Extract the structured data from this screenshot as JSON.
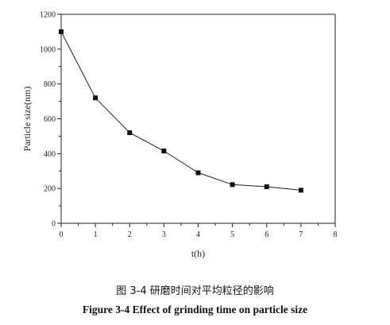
{
  "chart_data": {
    "type": "line",
    "x": [
      0,
      1,
      2,
      3,
      4,
      5,
      6,
      7
    ],
    "series": [
      {
        "values": [
          1100,
          720,
          520,
          415,
          290,
          222,
          210,
          190
        ]
      }
    ],
    "xlabel": "t(h)",
    "ylabel": "Particle size(nm)",
    "xlim": [
      0,
      8
    ],
    "ylim": [
      0,
      1200
    ],
    "xticks": [
      "0",
      "1",
      "2",
      "3",
      "4",
      "5",
      "6",
      "7",
      "8"
    ],
    "yticks": [
      "0",
      "200",
      "400",
      "600",
      "800",
      "1000",
      "1200"
    ],
    "marker": "square",
    "grid": false,
    "legend": "none"
  },
  "captions": {
    "chinese": "图 3-4 研磨时间对平均粒径的影响",
    "english": "Figure 3-4 Effect of grinding time on particle size"
  }
}
